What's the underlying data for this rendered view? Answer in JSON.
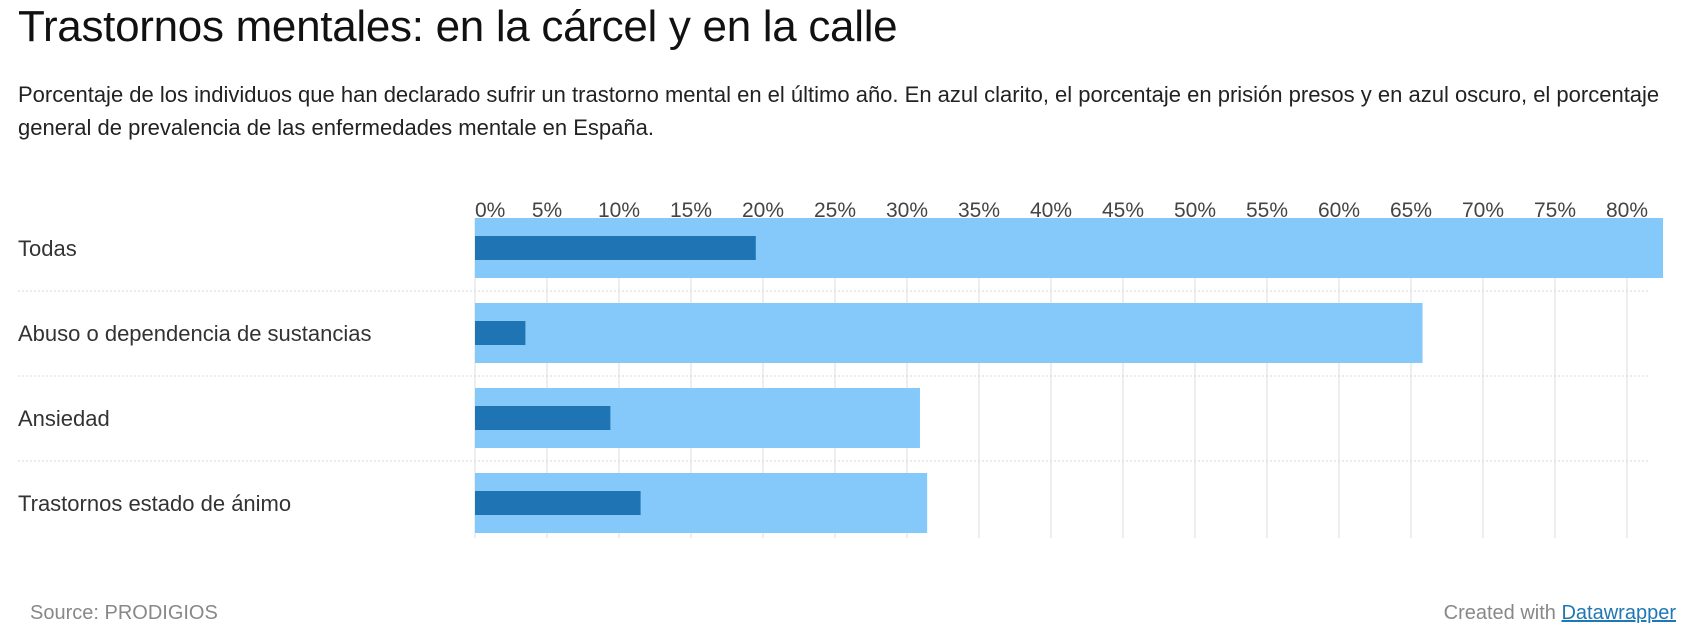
{
  "title": "Trastornos mentales: en la cárcel y en la calle",
  "description": "Porcentaje de los individuos que han declarado sufrir un trastorno mental en el último año. En azul clarito, el porcentaje en prisión presos y en azul oscuro, el porcentaje general de prevalencia de las enfermedades mentale en España.",
  "footer": {
    "source": "Source: PRODIGIOS",
    "created_with": "Created with",
    "link_label": "Datawrapper"
  },
  "chart_data": {
    "type": "bar",
    "orientation": "horizontal",
    "title": "Trastornos mentales: en la cárcel y en la calle",
    "xlabel": "",
    "ylabel": "",
    "xlim": [
      0,
      82.5
    ],
    "grid": true,
    "tick_labels": [
      "0%",
      "5%",
      "10%",
      "15%",
      "20%",
      "25%",
      "30%",
      "35%",
      "40%",
      "45%",
      "50%",
      "55%",
      "60%",
      "65%",
      "70%",
      "75%",
      "80%"
    ],
    "ticks": [
      0,
      5,
      10,
      15,
      20,
      25,
      30,
      35,
      40,
      45,
      50,
      55,
      60,
      65,
      70,
      75,
      80
    ],
    "categories": [
      "Todas",
      "Abuso o dependencia de sustancias",
      "Ansiedad",
      "Trastornos estado de ánimo"
    ],
    "series": [
      {
        "name": "Prisión",
        "color": "#85c8fa",
        "values": [
          82.5,
          65.8,
          30.9,
          31.4
        ]
      },
      {
        "name": "España (general)",
        "color": "#1f75b3",
        "values": [
          19.5,
          3.5,
          9.4,
          11.5
        ]
      }
    ]
  }
}
